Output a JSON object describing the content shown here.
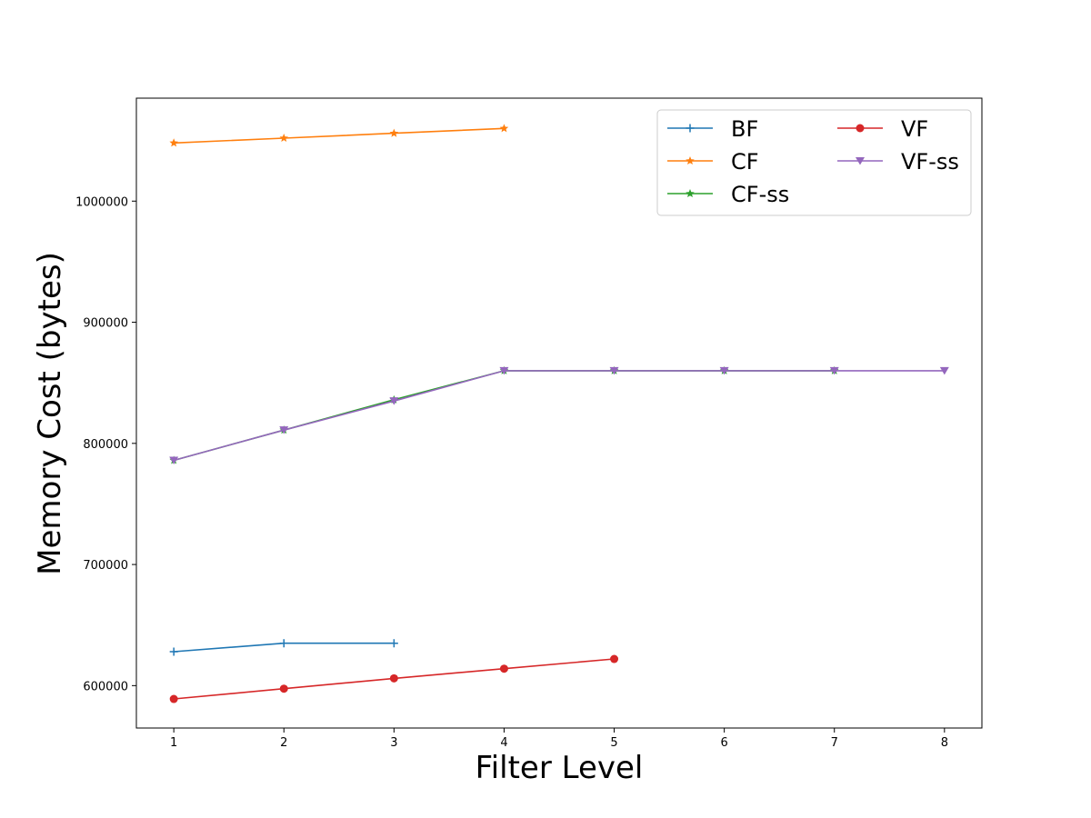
{
  "chart_data": {
    "type": "line",
    "title": "",
    "xlabel": "Filter Level",
    "ylabel": "Memory Cost (bytes)",
    "xlim": [
      0.66,
      8.34
    ],
    "ylim": [
      565000,
      1085000
    ],
    "xticks": [
      1,
      2,
      3,
      4,
      5,
      6,
      7,
      8
    ],
    "yticks": [
      600000,
      700000,
      800000,
      900000,
      1000000
    ],
    "grid": false,
    "legend_placement": "top-right",
    "legend_columns": 2,
    "series": [
      {
        "name": "BF",
        "color": "#1f77b4",
        "marker": "plus",
        "x": [
          1,
          2,
          3
        ],
        "y": [
          628000,
          635000,
          635000
        ]
      },
      {
        "name": "CF",
        "color": "#ff7f0e",
        "marker": "star",
        "x": [
          1,
          2,
          3,
          4
        ],
        "y": [
          1048000,
          1052000,
          1056000,
          1060000
        ]
      },
      {
        "name": "CF-ss",
        "color": "#2ca02c",
        "marker": "star",
        "x": [
          1,
          2,
          3,
          4,
          5,
          6,
          7
        ],
        "y": [
          786000,
          811000,
          836000,
          860000,
          860000,
          860000,
          860000
        ]
      },
      {
        "name": "VF",
        "color": "#d62728",
        "marker": "circle",
        "x": [
          1,
          2,
          3,
          4,
          5
        ],
        "y": [
          589000,
          597500,
          606000,
          614000,
          622000
        ]
      },
      {
        "name": "VF-ss",
        "color": "#9467bd",
        "marker": "triangle-down",
        "x": [
          1,
          2,
          3,
          4,
          5,
          6,
          7,
          8
        ],
        "y": [
          786000,
          811000,
          835000,
          860000,
          860000,
          860000,
          860000,
          860000
        ]
      }
    ]
  }
}
